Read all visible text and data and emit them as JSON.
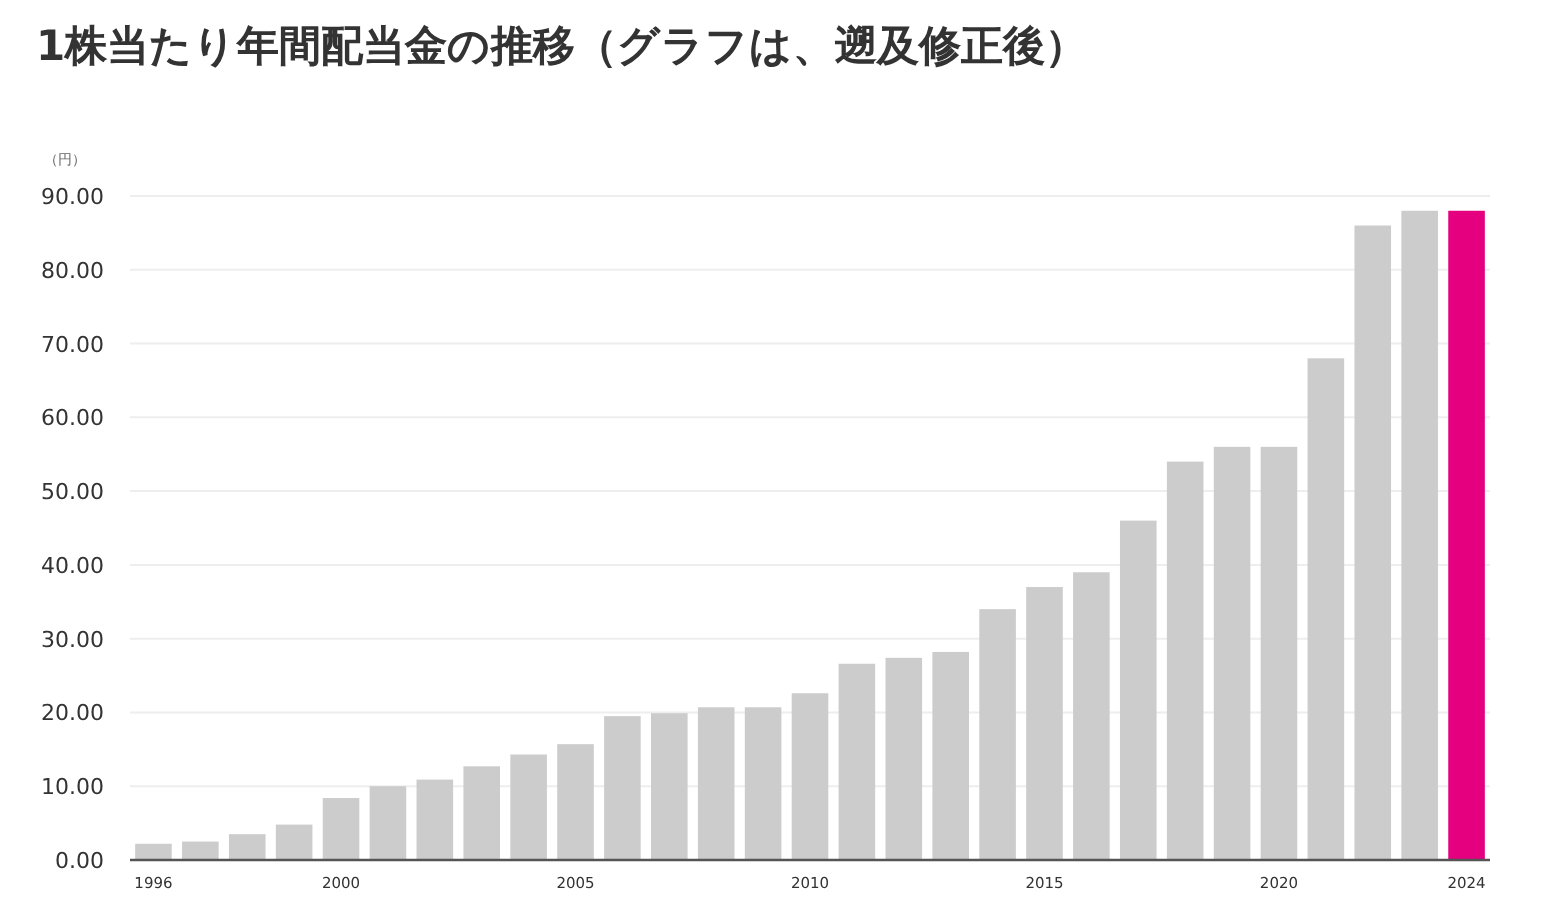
{
  "chart_data": {
    "type": "bar",
    "title": "1株当たり年間配当金の推移（グラフは、遡及修正後）",
    "ylabel": "（円）",
    "categories": [
      "1996",
      null,
      null,
      null,
      "2000",
      null,
      null,
      null,
      null,
      "2005",
      null,
      null,
      null,
      null,
      "2010",
      null,
      null,
      null,
      null,
      "2015",
      null,
      null,
      null,
      null,
      "2020",
      null,
      null,
      null,
      "2024"
    ],
    "values": [
      2.2,
      2.5,
      3.5,
      4.8,
      8.4,
      10.0,
      10.9,
      12.7,
      14.3,
      15.7,
      19.5,
      19.9,
      20.7,
      20.7,
      22.6,
      26.6,
      27.4,
      28.2,
      34,
      37,
      39,
      46,
      54,
      56,
      56,
      68,
      86,
      88,
      88
    ],
    "colors": [
      "#cccccc",
      "#cccccc",
      "#cccccc",
      "#cccccc",
      "#cccccc",
      "#cccccc",
      "#cccccc",
      "#cccccc",
      "#cccccc",
      "#cccccc",
      "#cccccc",
      "#cccccc",
      "#cccccc",
      "#cccccc",
      "#cccccc",
      "#cccccc",
      "#cccccc",
      "#cccccc",
      "#cccccc",
      "#cccccc",
      "#cccccc",
      "#cccccc",
      "#cccccc",
      "#cccccc",
      "#cccccc",
      "#cccccc",
      "#cccccc",
      "#cccccc",
      "#e4007f"
    ],
    "ylim": [
      0,
      90
    ],
    "yticks": [
      {
        "value": 0,
        "label": "0.00"
      },
      {
        "value": 10,
        "label": "10.00"
      },
      {
        "value": 20,
        "label": "20.00"
      },
      {
        "value": 30,
        "label": "30.00"
      },
      {
        "value": 40,
        "label": "40.00"
      },
      {
        "value": 50,
        "label": "50.00"
      },
      {
        "value": 60,
        "label": "60.00"
      },
      {
        "value": 70,
        "label": "70.00"
      },
      {
        "value": 80,
        "label": "80.00"
      },
      {
        "value": 90,
        "label": "90.00"
      }
    ],
    "grid": "y"
  }
}
